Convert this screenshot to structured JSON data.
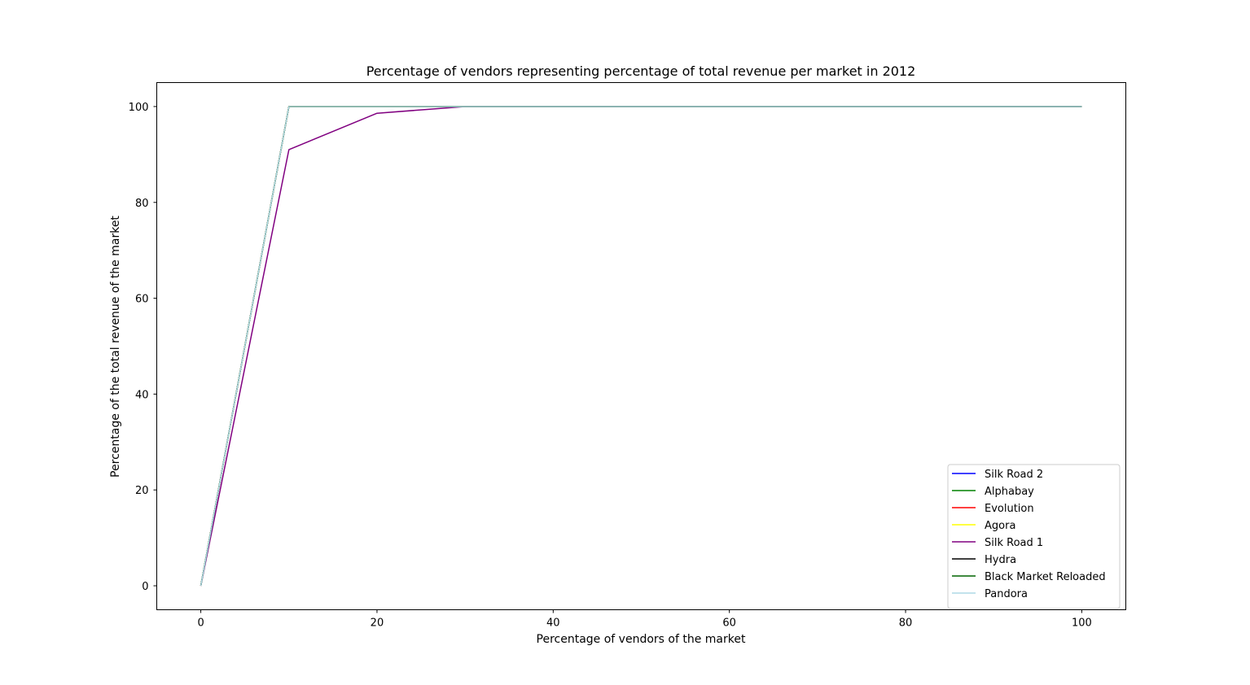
{
  "chart_data": {
    "type": "line",
    "title": "Percentage of vendors representing percentage of total revenue per market in 2012",
    "xlabel": "Percentage of vendors of the market",
    "ylabel": "Percentage of the total revenue of the market",
    "xlim": [
      -5,
      105
    ],
    "ylim": [
      -5,
      105
    ],
    "xticks": [
      0,
      20,
      40,
      60,
      80,
      100
    ],
    "yticks": [
      0,
      20,
      40,
      60,
      80,
      100
    ],
    "grid": false,
    "legend_position": "lower right",
    "series": [
      {
        "name": "Silk Road 2",
        "color": "#0000ff",
        "x": [
          0,
          10,
          20,
          30,
          40,
          50,
          60,
          70,
          80,
          90,
          100
        ],
        "y": [
          0,
          100,
          100,
          100,
          100,
          100,
          100,
          100,
          100,
          100,
          100
        ]
      },
      {
        "name": "Alphabay",
        "color": "#008000",
        "x": [
          0,
          10,
          20,
          30,
          40,
          50,
          60,
          70,
          80,
          90,
          100
        ],
        "y": [
          0,
          100,
          100,
          100,
          100,
          100,
          100,
          100,
          100,
          100,
          100
        ]
      },
      {
        "name": "Evolution",
        "color": "#ff0000",
        "x": [
          0,
          10,
          20,
          30,
          40,
          50,
          60,
          70,
          80,
          90,
          100
        ],
        "y": [
          0,
          100,
          100,
          100,
          100,
          100,
          100,
          100,
          100,
          100,
          100
        ]
      },
      {
        "name": "Agora",
        "color": "#ffff00",
        "x": [
          0,
          10,
          20,
          30,
          40,
          50,
          60,
          70,
          80,
          90,
          100
        ],
        "y": [
          0,
          100,
          100,
          100,
          100,
          100,
          100,
          100,
          100,
          100,
          100
        ]
      },
      {
        "name": "Silk Road 1",
        "color": "#800080",
        "x": [
          0,
          10,
          20,
          30,
          40,
          50,
          60,
          70,
          80,
          90,
          100
        ],
        "y": [
          0,
          91,
          98.6,
          100,
          100,
          100,
          100,
          100,
          100,
          100,
          100
        ]
      },
      {
        "name": "Hydra",
        "color": "#000000",
        "x": [
          0,
          10,
          20,
          30,
          40,
          50,
          60,
          70,
          80,
          90,
          100
        ],
        "y": [
          0,
          100,
          100,
          100,
          100,
          100,
          100,
          100,
          100,
          100,
          100
        ]
      },
      {
        "name": "Black Market Reloaded",
        "color": "#006400",
        "x": [
          0,
          10,
          20,
          30,
          40,
          50,
          60,
          70,
          80,
          90,
          100
        ],
        "y": [
          0,
          100,
          100,
          100,
          100,
          100,
          100,
          100,
          100,
          100,
          100
        ]
      },
      {
        "name": "Pandora",
        "color": "#add8e6",
        "x": [
          0,
          10,
          20,
          30,
          40,
          50,
          60,
          70,
          80,
          90,
          100
        ],
        "y": [
          0,
          100,
          100,
          100,
          100,
          100,
          100,
          100,
          100,
          100,
          100
        ]
      }
    ]
  }
}
